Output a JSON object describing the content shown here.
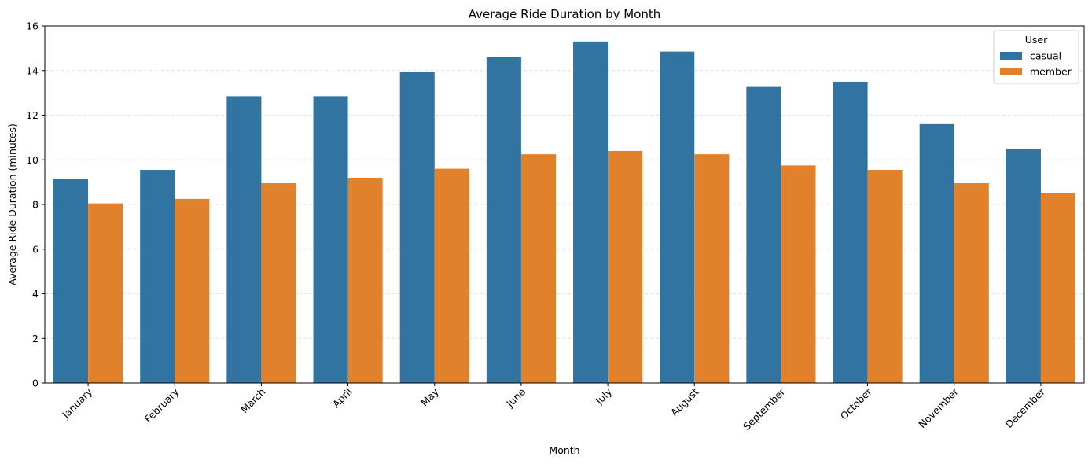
{
  "chart_data": {
    "type": "bar",
    "title": "Average Ride Duration by Month",
    "xlabel": "Month",
    "ylabel": "Average Ride Duration (minutes)",
    "categories": [
      "January",
      "February",
      "March",
      "April",
      "May",
      "June",
      "July",
      "August",
      "September",
      "October",
      "November",
      "December"
    ],
    "series": [
      {
        "name": "casual",
        "color": "#3274a1",
        "values": [
          9.15,
          9.55,
          12.85,
          12.85,
          13.95,
          14.6,
          15.3,
          14.85,
          13.3,
          13.5,
          11.6,
          10.5
        ]
      },
      {
        "name": "member",
        "color": "#e1812c",
        "values": [
          8.05,
          8.25,
          8.95,
          9.2,
          9.6,
          10.25,
          10.4,
          10.25,
          9.75,
          9.55,
          8.95,
          8.5
        ]
      }
    ],
    "ylim": [
      0,
      16
    ],
    "yticks": [
      0,
      2,
      4,
      6,
      8,
      10,
      12,
      14,
      16
    ],
    "grid": "y-dashed",
    "legend": {
      "title": "User",
      "position": "top-right"
    }
  }
}
